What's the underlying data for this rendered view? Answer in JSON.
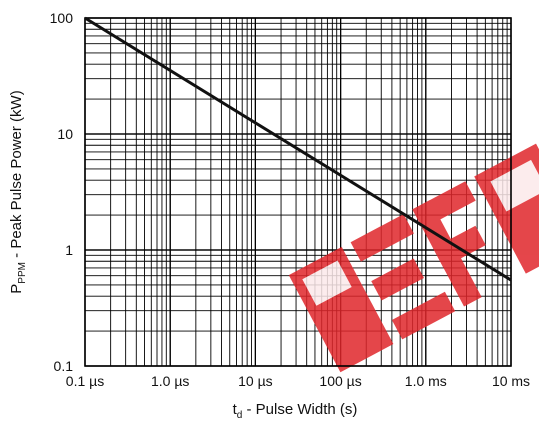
{
  "chart_data": {
    "type": "line",
    "x_scale": "log",
    "y_scale": "log",
    "grid": true,
    "xlim_seconds": [
      1e-07,
      0.01
    ],
    "ylim_kW": [
      0.1,
      100
    ],
    "x_tick_values_seconds": [
      1e-07,
      1e-06,
      1e-05,
      0.0001,
      0.001,
      0.01
    ],
    "x_tick_labels": [
      "0.1 µs",
      "1.0 µs",
      "10 µs",
      "100 µs",
      "1.0 ms",
      "10 ms"
    ],
    "y_tick_values_kW": [
      0.1,
      1,
      10,
      100
    ],
    "y_tick_labels": [
      "0.1",
      "1",
      "10",
      "100"
    ],
    "xlabel": {
      "main": "t",
      "sub": "d",
      "rest": " - Pulse Width (s)"
    },
    "ylabel": {
      "main": "P",
      "sub": "PPM",
      "rest": " - Peak Pulse Power (kW)"
    },
    "series": [
      {
        "points": [
          {
            "x": 1e-07,
            "y": 100
          },
          {
            "x": 0.01,
            "y": 0.55
          }
        ],
        "color": "#111111"
      }
    ],
    "watermark": {
      "color": "#e0262b"
    }
  }
}
